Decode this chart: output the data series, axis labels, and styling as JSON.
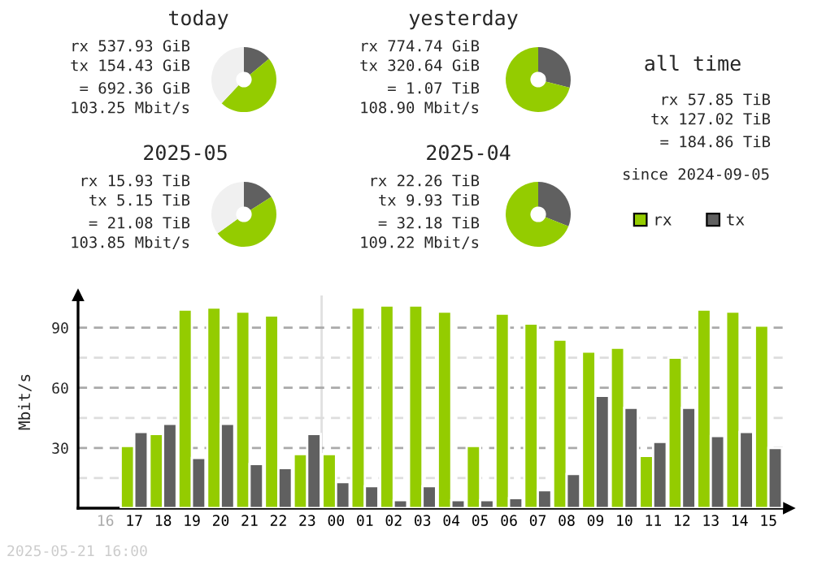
{
  "chart_data": [
    {
      "type": "donut",
      "title": "today",
      "categories": [
        "tx",
        "rx",
        null
      ],
      "values": [
        14,
        48,
        38
      ],
      "colors": [
        "#606060",
        "#94cc00",
        "#f0f0f0"
      ],
      "legend": "right",
      "annotations": [
        "rx 537.93 GiB",
        "tx 154.43 GiB",
        "= 692.36 GiB",
        "103.25 Mbit/s"
      ]
    },
    {
      "type": "donut",
      "title": "yesterday",
      "categories": [
        null,
        null
      ],
      "values": [
        29,
        71
      ],
      "colors": [
        "#606060",
        "#94cc00"
      ],
      "annotations": [
        "rx 774.74 GiB",
        "tx 320.64 GiB",
        "= 1.07 TiB",
        "108.90 Mbit/s"
      ]
    },
    {
      "type": "donut",
      "title": "2025-05",
      "categories": [
        null,
        null,
        null
      ],
      "values": [
        16,
        49,
        35
      ],
      "colors": [
        "#606060",
        "#94cc00",
        "#f0f0f0"
      ],
      "annotations": [
        "rx 15.93 TiB",
        "tx 5.15 TiB",
        "= 21.08 TiB",
        "103.85 Mbit/s"
      ]
    },
    {
      "type": "donut",
      "title": "2025-04",
      "categories": [
        null,
        null
      ],
      "values": [
        31,
        69
      ],
      "colors": [
        "#606060",
        "#94cc00"
      ],
      "annotations": [
        "rx 22.26 TiB",
        "tx 9.93 TiB",
        "= 32.18 TiB",
        "109.22 Mbit/s"
      ]
    },
    {
      "type": "other",
      "title": "all time",
      "annotations": [
        "rx 57.85 TiB",
        "tx 127.02 TiB",
        "= 184.86 TiB",
        "since 2024-09-05"
      ]
    },
    {
      "type": "bar",
      "ylabel": "Mbit/s",
      "categories": [
        "16",
        "17",
        "18",
        "19",
        "20",
        "21",
        "22",
        "23",
        "00",
        "01",
        "02",
        "03",
        "04",
        "05",
        "06",
        "07",
        "08",
        "09",
        "10",
        "11",
        "12",
        "13",
        "14",
        "15"
      ],
      "series": [
        {
          "color": "#94cc00",
          "values": [
            null,
            31,
            37,
            99,
            100,
            98,
            96,
            27,
            27,
            100,
            101,
            101,
            98,
            31,
            97,
            92,
            84,
            78,
            80,
            26,
            75,
            99,
            98,
            91
          ]
        },
        {
          "color": "#606060",
          "values": [
            null,
            38,
            42,
            25,
            42,
            22,
            20,
            37,
            13,
            11,
            4,
            11,
            4,
            4,
            5,
            9,
            17,
            56,
            50,
            33,
            50,
            36,
            38,
            30
          ]
        }
      ],
      "ylim": [
        0,
        106
      ],
      "yticks": [
        {
          "value": 15,
          "label": null
        },
        30,
        {
          "value": 45,
          "label": null
        },
        60,
        {
          "value": 75,
          "label": null
        },
        90
      ],
      "grid": "y",
      "ref_lines": [
        {
          "axis": "x",
          "value": "00",
          "color": "#e0e0e0"
        }
      ],
      "annotations": [
        "2025-05-21 16:00"
      ]
    }
  ]
}
